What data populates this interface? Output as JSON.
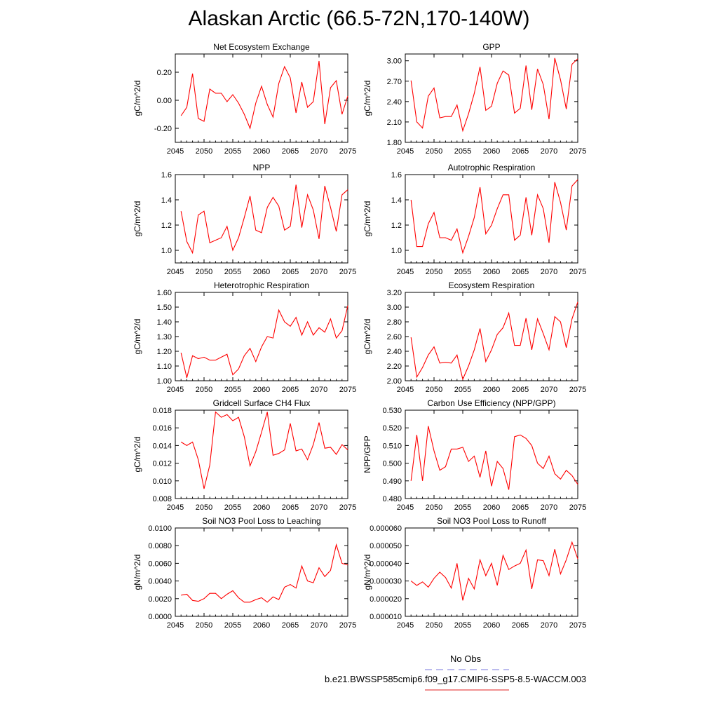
{
  "title": "Alaskan Arctic (66.5-72N,170-140W)",
  "legend": {
    "obs_label": "No Obs",
    "obs_color": "#7777dd",
    "model_label": "b.e21.BWSSP585cmip6.f09_g17.CMIP6-SSP5-8.5-WACCM.003",
    "model_color": "#e02020"
  },
  "line_color": "#ff0000",
  "chart_data": [
    {
      "type": "line",
      "title": "Net Ecosystem Exchange",
      "ylabel": "gC/m^2/d",
      "xlim": [
        2045,
        2075
      ],
      "ylim": [
        -0.3,
        0.33
      ],
      "xticks": [
        "2045",
        "2050",
        "2055",
        "2060",
        "2065",
        "2070",
        "2075"
      ],
      "yticks": [
        "-0.20",
        "0.00",
        "0.20"
      ],
      "ytick_values": [
        -0.2,
        0.0,
        0.2
      ],
      "x": [
        2046,
        2047,
        2048,
        2049,
        2050,
        2051,
        2052,
        2053,
        2054,
        2055,
        2056,
        2057,
        2058,
        2059,
        2060,
        2061,
        2062,
        2063,
        2064,
        2065,
        2066,
        2067,
        2068,
        2069,
        2070,
        2071,
        2072,
        2073,
        2074,
        2075
      ],
      "values": [
        -0.11,
        -0.05,
        0.19,
        -0.13,
        -0.15,
        0.08,
        0.05,
        0.05,
        -0.01,
        0.04,
        -0.02,
        -0.1,
        -0.2,
        -0.02,
        0.1,
        -0.03,
        -0.12,
        0.12,
        0.24,
        0.16,
        -0.09,
        0.13,
        -0.05,
        -0.01,
        0.28,
        -0.17,
        0.09,
        0.14,
        -0.1,
        0.03
      ]
    },
    {
      "type": "line",
      "title": "GPP",
      "ylabel": "gC/m^2/d",
      "xlim": [
        2045,
        2075
      ],
      "ylim": [
        1.8,
        3.1
      ],
      "xticks": [
        "2045",
        "2050",
        "2055",
        "2060",
        "2065",
        "2070",
        "2075"
      ],
      "yticks": [
        "1.80",
        "2.10",
        "2.40",
        "2.70",
        "3.00"
      ],
      "ytick_values": [
        1.8,
        2.1,
        2.4,
        2.7,
        3.0
      ],
      "x": [
        2046,
        2047,
        2048,
        2049,
        2050,
        2051,
        2052,
        2053,
        2054,
        2055,
        2056,
        2057,
        2058,
        2059,
        2060,
        2061,
        2062,
        2063,
        2064,
        2065,
        2066,
        2067,
        2068,
        2069,
        2070,
        2071,
        2072,
        2073,
        2074,
        2075
      ],
      "values": [
        2.71,
        2.1,
        2.01,
        2.48,
        2.6,
        2.16,
        2.18,
        2.18,
        2.35,
        1.97,
        2.22,
        2.52,
        2.91,
        2.27,
        2.33,
        2.67,
        2.85,
        2.79,
        2.23,
        2.3,
        2.93,
        2.28,
        2.88,
        2.65,
        2.14,
        3.04,
        2.72,
        2.29,
        2.95,
        3.03
      ]
    },
    {
      "type": "line",
      "title": "NPP",
      "ylabel": "gC/m^2/d",
      "xlim": [
        2045,
        2075
      ],
      "ylim": [
        0.9,
        1.6
      ],
      "xticks": [
        "2045",
        "2050",
        "2055",
        "2060",
        "2065",
        "2070",
        "2075"
      ],
      "yticks": [
        "1.0",
        "1.2",
        "1.4",
        "1.6"
      ],
      "ytick_values": [
        1.0,
        1.2,
        1.4,
        1.6
      ],
      "x": [
        2046,
        2047,
        2048,
        2049,
        2050,
        2051,
        2052,
        2053,
        2054,
        2055,
        2056,
        2057,
        2058,
        2059,
        2060,
        2061,
        2062,
        2063,
        2064,
        2065,
        2066,
        2067,
        2068,
        2069,
        2070,
        2071,
        2072,
        2073,
        2074,
        2075
      ],
      "values": [
        1.31,
        1.07,
        0.98,
        1.28,
        1.31,
        1.06,
        1.08,
        1.1,
        1.19,
        1.0,
        1.1,
        1.26,
        1.43,
        1.16,
        1.14,
        1.34,
        1.42,
        1.35,
        1.16,
        1.19,
        1.52,
        1.18,
        1.44,
        1.32,
        1.09,
        1.51,
        1.34,
        1.15,
        1.44,
        1.48
      ]
    },
    {
      "type": "line",
      "title": "Autotrophic Respiration",
      "ylabel": "gC/m^2/d",
      "xlim": [
        2045,
        2075
      ],
      "ylim": [
        0.9,
        1.6
      ],
      "xticks": [
        "2045",
        "2050",
        "2055",
        "2060",
        "2065",
        "2070",
        "2075"
      ],
      "yticks": [
        "1.0",
        "1.2",
        "1.4",
        "1.6"
      ],
      "ytick_values": [
        1.0,
        1.2,
        1.4,
        1.6
      ],
      "x": [
        2046,
        2047,
        2048,
        2049,
        2050,
        2051,
        2052,
        2053,
        2054,
        2055,
        2056,
        2057,
        2058,
        2059,
        2060,
        2061,
        2062,
        2063,
        2064,
        2065,
        2066,
        2067,
        2068,
        2069,
        2070,
        2071,
        2072,
        2073,
        2074,
        2075
      ],
      "values": [
        1.4,
        1.03,
        1.03,
        1.21,
        1.3,
        1.1,
        1.1,
        1.08,
        1.17,
        0.98,
        1.11,
        1.26,
        1.5,
        1.13,
        1.2,
        1.33,
        1.44,
        1.44,
        1.08,
        1.12,
        1.42,
        1.12,
        1.44,
        1.33,
        1.06,
        1.54,
        1.38,
        1.16,
        1.51,
        1.56
      ]
    },
    {
      "type": "line",
      "title": "Heterotrophic Respiration",
      "ylabel": "gC/m^2/d",
      "xlim": [
        2045,
        2075
      ],
      "ylim": [
        1.0,
        1.6
      ],
      "xticks": [
        "2045",
        "2050",
        "2055",
        "2060",
        "2065",
        "2070",
        "2075"
      ],
      "yticks": [
        "1.00",
        "1.10",
        "1.20",
        "1.30",
        "1.40",
        "1.50",
        "1.60"
      ],
      "ytick_values": [
        1.0,
        1.1,
        1.2,
        1.3,
        1.4,
        1.5,
        1.6
      ],
      "x": [
        2046,
        2047,
        2048,
        2049,
        2050,
        2051,
        2052,
        2053,
        2054,
        2055,
        2056,
        2057,
        2058,
        2059,
        2060,
        2061,
        2062,
        2063,
        2064,
        2065,
        2066,
        2067,
        2068,
        2069,
        2070,
        2071,
        2072,
        2073,
        2074,
        2075
      ],
      "values": [
        1.19,
        1.02,
        1.17,
        1.15,
        1.16,
        1.14,
        1.14,
        1.16,
        1.18,
        1.04,
        1.08,
        1.17,
        1.22,
        1.13,
        1.23,
        1.3,
        1.29,
        1.48,
        1.4,
        1.37,
        1.43,
        1.31,
        1.4,
        1.31,
        1.36,
        1.33,
        1.42,
        1.29,
        1.34,
        1.51
      ]
    },
    {
      "type": "line",
      "title": "Ecosystem Respiration",
      "ylabel": "gC/m^2/d",
      "xlim": [
        2045,
        2075
      ],
      "ylim": [
        2.0,
        3.2
      ],
      "xticks": [
        "2045",
        "2050",
        "2055",
        "2060",
        "2065",
        "2070",
        "2075"
      ],
      "yticks": [
        "2.00",
        "2.20",
        "2.40",
        "2.60",
        "2.80",
        "3.00",
        "3.20"
      ],
      "ytick_values": [
        2.0,
        2.2,
        2.4,
        2.6,
        2.8,
        3.0,
        3.2
      ],
      "x": [
        2046,
        2047,
        2048,
        2049,
        2050,
        2051,
        2052,
        2053,
        2054,
        2055,
        2056,
        2057,
        2058,
        2059,
        2060,
        2061,
        2062,
        2063,
        2064,
        2065,
        2066,
        2067,
        2068,
        2069,
        2070,
        2071,
        2072,
        2073,
        2074,
        2075
      ],
      "values": [
        2.59,
        2.05,
        2.18,
        2.35,
        2.46,
        2.24,
        2.25,
        2.24,
        2.35,
        2.02,
        2.2,
        2.42,
        2.71,
        2.26,
        2.42,
        2.63,
        2.72,
        2.92,
        2.48,
        2.48,
        2.85,
        2.42,
        2.84,
        2.64,
        2.42,
        2.87,
        2.8,
        2.45,
        2.84,
        3.07
      ]
    },
    {
      "type": "line",
      "title": "Gridcell Surface CH4 Flux",
      "ylabel": "gC/m^2/d",
      "xlim": [
        2045,
        2075
      ],
      "ylim": [
        0.008,
        0.018
      ],
      "xticks": [
        "2045",
        "2050",
        "2055",
        "2060",
        "2065",
        "2070",
        "2075"
      ],
      "yticks": [
        "0.008",
        "0.010",
        "0.012",
        "0.014",
        "0.016",
        "0.018"
      ],
      "ytick_values": [
        0.008,
        0.01,
        0.012,
        0.014,
        0.016,
        0.018
      ],
      "x": [
        2046,
        2047,
        2048,
        2049,
        2050,
        2051,
        2052,
        2053,
        2054,
        2055,
        2056,
        2057,
        2058,
        2059,
        2060,
        2061,
        2062,
        2063,
        2064,
        2065,
        2066,
        2067,
        2068,
        2069,
        2070,
        2071,
        2072,
        2073,
        2074,
        2075
      ],
      "values": [
        0.0144,
        0.014,
        0.0144,
        0.0124,
        0.0091,
        0.0118,
        0.0178,
        0.0172,
        0.0175,
        0.0168,
        0.0172,
        0.015,
        0.0117,
        0.0133,
        0.0155,
        0.0178,
        0.0129,
        0.0131,
        0.0135,
        0.0165,
        0.0134,
        0.0136,
        0.0124,
        0.0141,
        0.0166,
        0.0137,
        0.0138,
        0.013,
        0.0141,
        0.0135
      ]
    },
    {
      "type": "line",
      "title": "Carbon Use Efficiency (NPP/GPP)",
      "ylabel": "NPP/GPP",
      "xlim": [
        2045,
        2075
      ],
      "ylim": [
        0.48,
        0.53
      ],
      "xticks": [
        "2045",
        "2050",
        "2055",
        "2060",
        "2065",
        "2070",
        "2075"
      ],
      "yticks": [
        "0.480",
        "0.490",
        "0.500",
        "0.510",
        "0.520",
        "0.530"
      ],
      "ytick_values": [
        0.48,
        0.49,
        0.5,
        0.51,
        0.52,
        0.53
      ],
      "x": [
        2046,
        2047,
        2048,
        2049,
        2050,
        2051,
        2052,
        2053,
        2054,
        2055,
        2056,
        2057,
        2058,
        2059,
        2060,
        2061,
        2062,
        2063,
        2064,
        2065,
        2066,
        2067,
        2068,
        2069,
        2070,
        2071,
        2072,
        2073,
        2074,
        2075
      ],
      "values": [
        0.49,
        0.516,
        0.49,
        0.521,
        0.507,
        0.496,
        0.498,
        0.508,
        0.508,
        0.509,
        0.501,
        0.504,
        0.492,
        0.507,
        0.487,
        0.501,
        0.497,
        0.485,
        0.515,
        0.516,
        0.514,
        0.51,
        0.5,
        0.497,
        0.504,
        0.494,
        0.491,
        0.496,
        0.493,
        0.488
      ]
    },
    {
      "type": "line",
      "title": "Soil NO3 Pool Loss to Leaching",
      "ylabel": "gN/m^2/d",
      "xlim": [
        2045,
        2075
      ],
      "ylim": [
        0.0,
        0.01
      ],
      "xticks": [
        "2045",
        "2050",
        "2055",
        "2060",
        "2065",
        "2070",
        "2075"
      ],
      "yticks": [
        "0.0000",
        "0.0020",
        "0.0040",
        "0.0060",
        "0.0080",
        "0.0100"
      ],
      "ytick_values": [
        0.0,
        0.002,
        0.004,
        0.006,
        0.008,
        0.01
      ],
      "x": [
        2046,
        2047,
        2048,
        2049,
        2050,
        2051,
        2052,
        2053,
        2054,
        2055,
        2056,
        2057,
        2058,
        2059,
        2060,
        2061,
        2062,
        2063,
        2064,
        2065,
        2066,
        2067,
        2068,
        2069,
        2070,
        2071,
        2072,
        2073,
        2074,
        2075
      ],
      "values": [
        0.0024,
        0.0025,
        0.0018,
        0.0017,
        0.002,
        0.0026,
        0.0026,
        0.002,
        0.0025,
        0.0029,
        0.0021,
        0.0016,
        0.0016,
        0.0019,
        0.0021,
        0.0016,
        0.0022,
        0.0019,
        0.0033,
        0.0036,
        0.0032,
        0.0057,
        0.004,
        0.0038,
        0.0055,
        0.0045,
        0.0052,
        0.0081,
        0.006,
        0.0058
      ]
    },
    {
      "type": "line",
      "title": "Soil NO3 Pool Loss to Runoff",
      "ylabel": "gN/m^2/d",
      "xlim": [
        2045,
        2075
      ],
      "ylim": [
        1e-05,
        6e-05
      ],
      "xticks": [
        "2045",
        "2050",
        "2055",
        "2060",
        "2065",
        "2070",
        "2075"
      ],
      "yticks": [
        "0.000010",
        "0.000020",
        "0.000030",
        "0.000040",
        "0.000050",
        "0.000060"
      ],
      "ytick_values": [
        1e-05,
        2e-05,
        3e-05,
        4e-05,
        5e-05,
        6e-05
      ],
      "x": [
        2046,
        2047,
        2048,
        2049,
        2050,
        2051,
        2052,
        2053,
        2054,
        2055,
        2056,
        2057,
        2058,
        2059,
        2060,
        2061,
        2062,
        2063,
        2064,
        2065,
        2066,
        2067,
        2068,
        2069,
        2070,
        2071,
        2072,
        2073,
        2074,
        2075
      ],
      "values": [
        3e-05,
        2.75e-05,
        2.95e-05,
        2.65e-05,
        3.15e-05,
        3.5e-05,
        3.2e-05,
        2.6e-05,
        4e-05,
        1.9e-05,
        3.15e-05,
        2.55e-05,
        4.2e-05,
        3.3e-05,
        4e-05,
        2.75e-05,
        4.45e-05,
        3.65e-05,
        3.85e-05,
        4e-05,
        4.75e-05,
        2.55e-05,
        4.2e-05,
        4.15e-05,
        3.3e-05,
        4.8e-05,
        3.4e-05,
        4.2e-05,
        5.2e-05,
        4.25e-05
      ]
    }
  ]
}
